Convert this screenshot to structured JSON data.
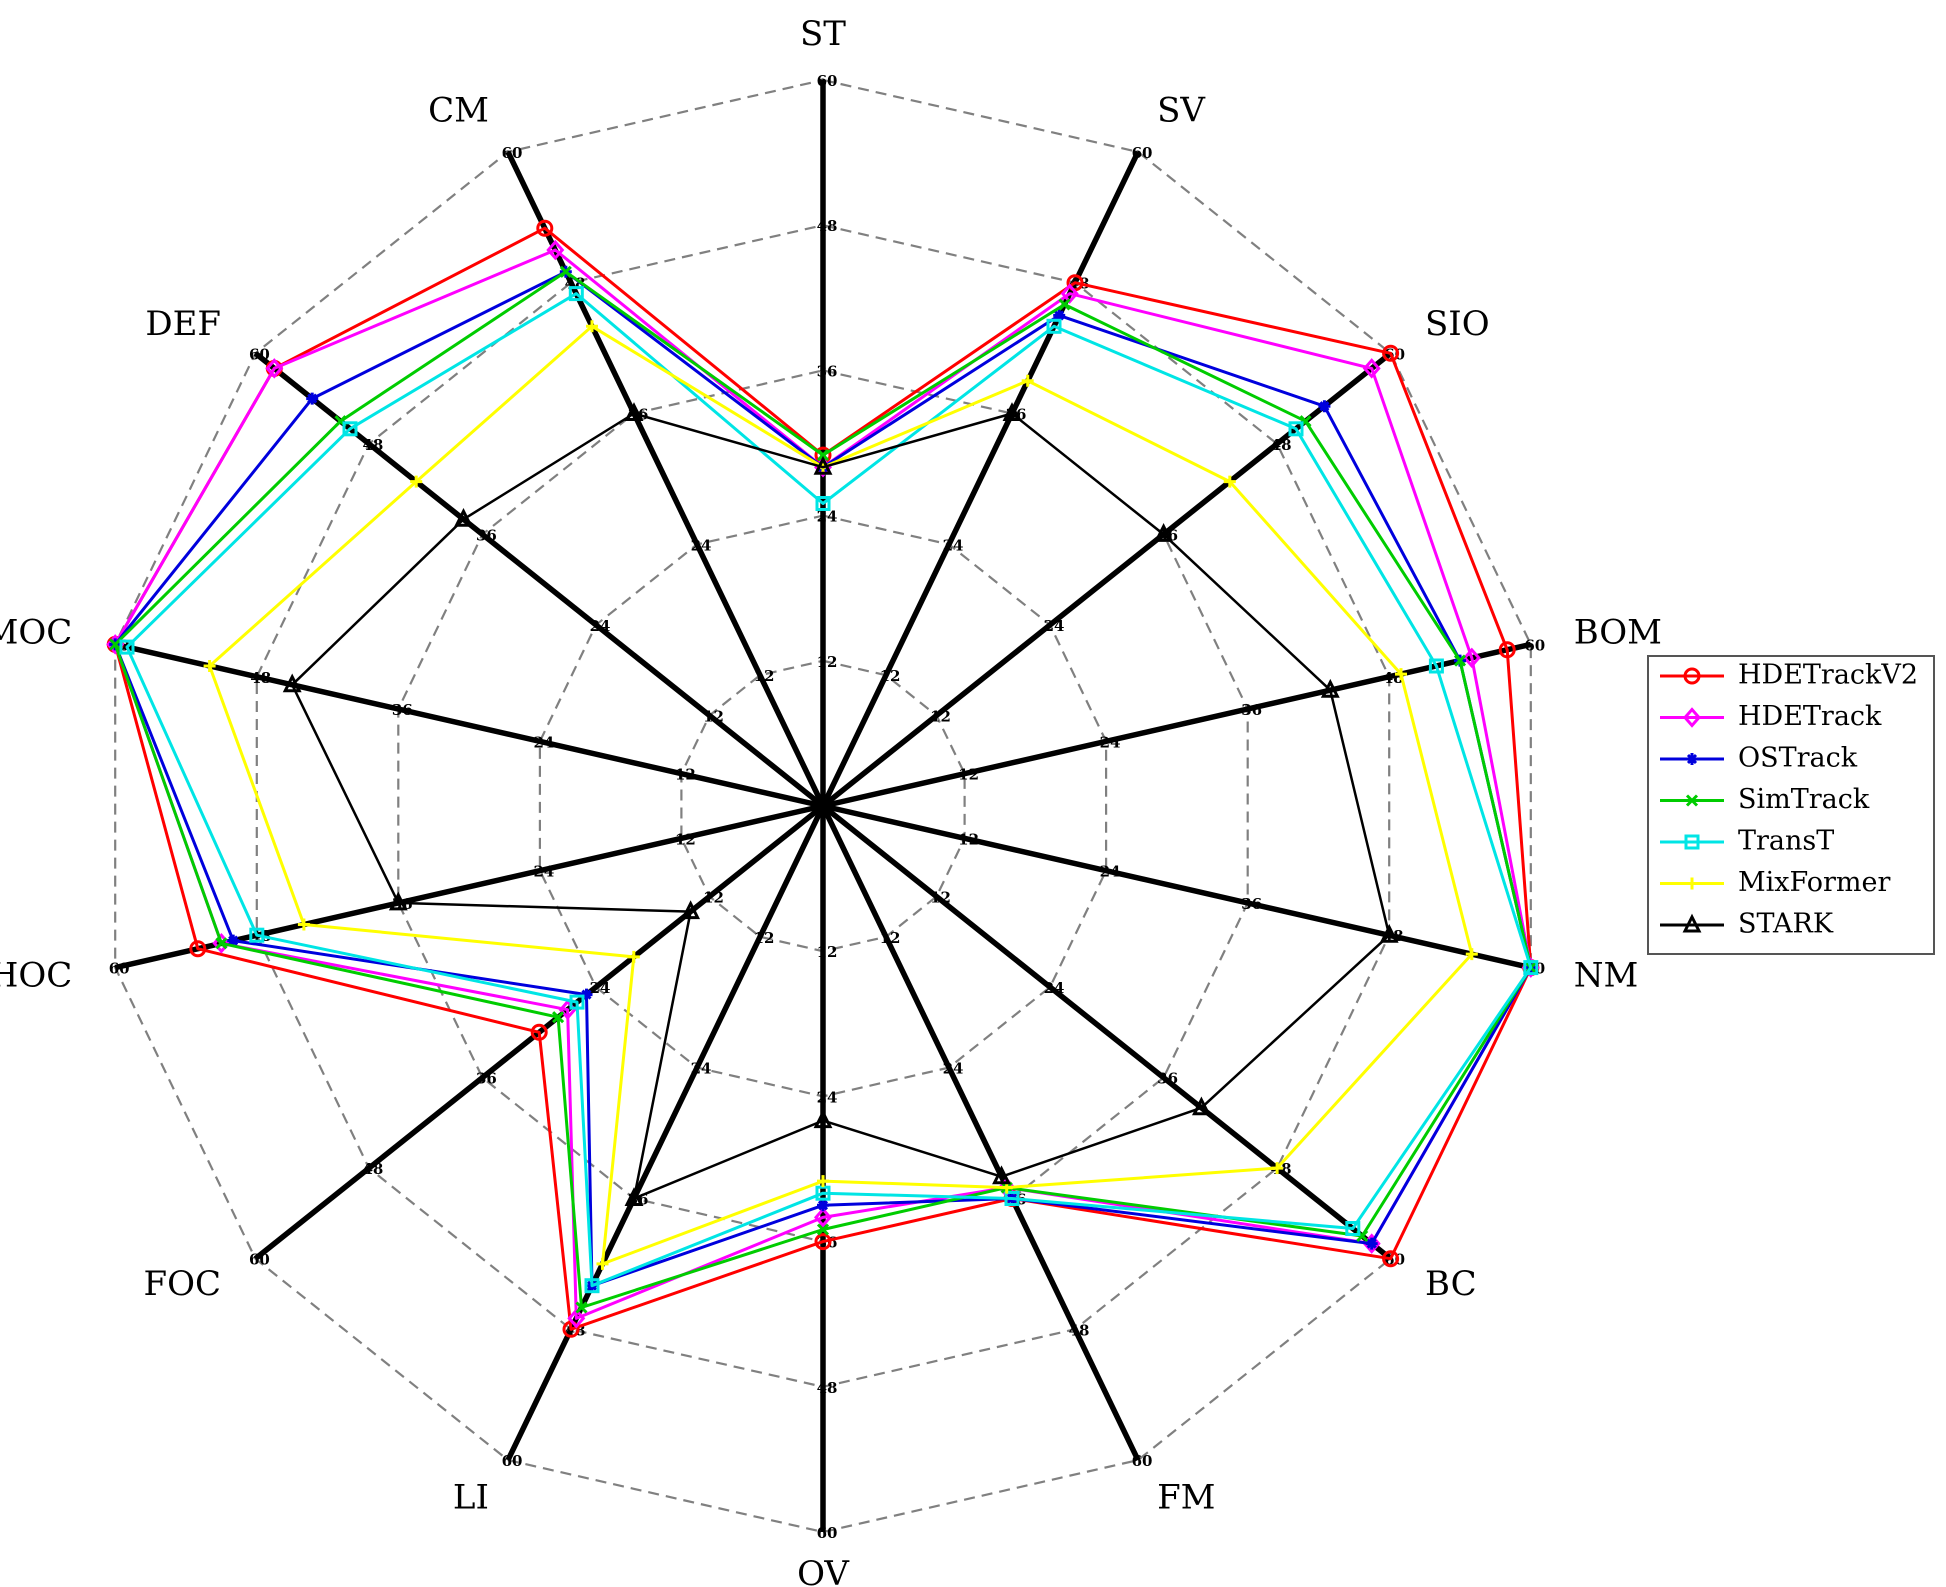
{
  "chart_data": {
    "type": "radar",
    "axes": [
      "ST",
      "SV",
      "SIO",
      "BOM",
      "NM",
      "BC",
      "FM",
      "OV",
      "LI",
      "FOC",
      "HOC",
      "MOC",
      "DEF",
      "CM"
    ],
    "rlim": [
      0,
      60
    ],
    "grid_levels": [
      12,
      24,
      36,
      48,
      60
    ],
    "tick_labels": [
      "12",
      "24",
      "36",
      "48",
      "60"
    ],
    "legend_position": "right",
    "series": [
      {
        "name": "HDETrackV2",
        "color": "#ff0000",
        "marker": "circle",
        "values": [
          29,
          48,
          60,
          58,
          60,
          60,
          36,
          36,
          48,
          30,
          53,
          60,
          58,
          53
        ]
      },
      {
        "name": "HDETrack",
        "color": "#ff00ff",
        "marker": "diamond",
        "values": [
          28,
          47,
          58,
          55,
          60,
          58,
          35,
          34,
          47,
          27,
          51,
          60,
          58,
          51
        ]
      },
      {
        "name": "OSTrack",
        "color": "#0000dd",
        "marker": "star",
        "values": [
          28,
          45,
          53,
          54,
          60,
          58,
          36,
          33,
          44,
          25,
          50,
          60,
          54,
          49
        ]
      },
      {
        "name": "SimTrack",
        "color": "#00cc00",
        "marker": "x",
        "values": [
          29,
          46,
          51,
          54,
          60,
          57,
          35,
          35,
          46,
          28,
          51,
          60,
          51,
          49
        ]
      },
      {
        "name": "TransT",
        "color": "#00e5e5",
        "marker": "square",
        "values": [
          25,
          44,
          50,
          52,
          60,
          56,
          36,
          32,
          44,
          26,
          48,
          59,
          50,
          47
        ]
      },
      {
        "name": "MixFormer",
        "color": "#ffff00",
        "marker": "plus",
        "values": [
          28,
          39,
          43,
          49,
          55,
          48,
          35,
          31,
          42,
          20,
          44,
          52,
          43,
          44
        ]
      },
      {
        "name": "STARK",
        "color": "#000000",
        "marker": "triangle",
        "values": [
          28,
          36,
          36,
          43,
          48,
          40,
          34,
          26,
          36,
          14,
          36,
          45,
          38,
          36
        ]
      }
    ]
  }
}
